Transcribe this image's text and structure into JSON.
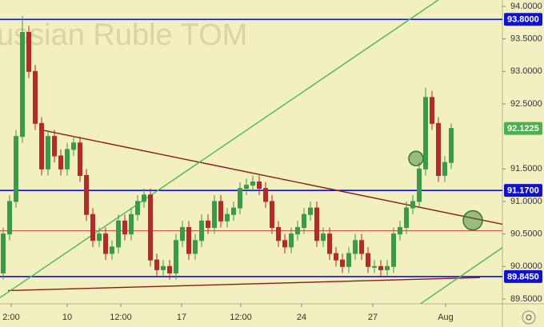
{
  "chart_data": {
    "type": "candlestick",
    "watermark": "ussian Ruble TOM",
    "x": [
      0,
      2,
      4,
      6,
      8,
      10,
      12,
      14,
      16,
      18,
      20,
      22,
      24,
      26,
      28,
      30,
      32,
      34,
      36,
      38,
      40,
      42,
      44,
      46,
      48,
      50,
      52,
      54,
      56,
      58,
      60,
      62,
      64,
      66,
      68,
      70,
      72,
      74,
      76,
      78,
      80,
      82,
      84,
      86,
      88,
      90,
      92,
      94,
      96,
      98,
      100,
      102,
      104,
      106,
      108,
      110,
      112,
      114,
      116,
      118,
      120,
      122,
      124,
      126,
      128,
      130,
      132,
      134,
      136,
      138,
      140,
      142
    ],
    "open": [
      89.8,
      89.9,
      90.5,
      91.0,
      92.0,
      93.6,
      93.0,
      92.2,
      91.5,
      92.0,
      91.7,
      91.5,
      91.8,
      91.9,
      91.4,
      90.8,
      90.4,
      90.5,
      90.2,
      90.3,
      90.7,
      90.5,
      90.8,
      91.0,
      91.1,
      90.1,
      89.95,
      90.0,
      89.9,
      90.4,
      90.6,
      90.2,
      90.4,
      90.7,
      90.6,
      91.0,
      90.7,
      90.8,
      90.9,
      91.2,
      91.25,
      91.3,
      91.2,
      91.0,
      90.6,
      90.4,
      90.3,
      90.5,
      90.6,
      90.8,
      90.9,
      90.4,
      90.5,
      90.2,
      90.1,
      90.0,
      90.2,
      90.4,
      90.2,
      90.0,
      90.0,
      89.95,
      90.0,
      90.5,
      90.6,
      90.9,
      91.0,
      91.5,
      92.6,
      92.2,
      91.4,
      91.6
    ],
    "high": [
      90.0,
      90.6,
      91.1,
      92.1,
      93.85,
      93.7,
      93.1,
      92.3,
      92.1,
      92.1,
      91.8,
      91.9,
      92.0,
      92.0,
      91.5,
      90.9,
      90.6,
      90.6,
      90.4,
      90.8,
      90.8,
      90.9,
      91.1,
      91.2,
      91.2,
      90.2,
      90.1,
      90.1,
      90.5,
      90.7,
      90.7,
      90.5,
      90.8,
      90.8,
      91.1,
      91.1,
      90.9,
      91.0,
      91.3,
      91.35,
      91.4,
      91.4,
      91.3,
      91.1,
      90.7,
      90.5,
      90.6,
      90.7,
      90.9,
      91.0,
      91.0,
      90.6,
      90.6,
      90.3,
      90.2,
      90.3,
      90.5,
      90.5,
      90.3,
      90.1,
      90.1,
      90.1,
      90.6,
      90.7,
      91.0,
      91.1,
      91.6,
      92.75,
      92.7,
      92.3,
      91.7,
      92.2
    ],
    "low": [
      89.7,
      89.8,
      90.4,
      90.9,
      91.9,
      92.9,
      92.1,
      91.4,
      91.4,
      91.6,
      91.4,
      91.4,
      91.7,
      91.3,
      90.7,
      90.3,
      90.3,
      90.1,
      90.1,
      90.2,
      90.4,
      90.4,
      90.7,
      90.9,
      90.0,
      89.85,
      89.85,
      89.8,
      89.8,
      90.3,
      90.1,
      90.1,
      90.3,
      90.5,
      90.5,
      90.6,
      90.6,
      90.7,
      90.8,
      91.1,
      91.15,
      91.1,
      90.9,
      90.5,
      90.3,
      90.2,
      90.2,
      90.4,
      90.5,
      90.7,
      90.3,
      90.3,
      90.1,
      90.0,
      89.9,
      89.9,
      90.1,
      90.1,
      89.9,
      89.9,
      89.85,
      89.85,
      89.9,
      90.4,
      90.5,
      90.8,
      90.9,
      91.4,
      92.1,
      91.3,
      91.3,
      91.5
    ],
    "close": [
      89.9,
      90.5,
      91.0,
      92.0,
      93.6,
      93.0,
      92.2,
      91.5,
      92.0,
      91.7,
      91.5,
      91.8,
      91.9,
      91.4,
      90.8,
      90.4,
      90.5,
      90.2,
      90.3,
      90.7,
      90.5,
      90.8,
      91.0,
      91.1,
      90.1,
      89.95,
      90.0,
      89.9,
      90.4,
      90.6,
      90.2,
      90.4,
      90.7,
      90.6,
      91.0,
      90.7,
      90.8,
      90.9,
      91.2,
      91.25,
      91.3,
      91.2,
      91.0,
      90.6,
      90.4,
      90.3,
      90.5,
      90.6,
      90.8,
      90.9,
      90.4,
      90.5,
      90.2,
      90.1,
      90.0,
      90.2,
      90.4,
      90.2,
      90.0,
      90.0,
      89.95,
      90.0,
      90.5,
      90.6,
      90.9,
      91.0,
      91.5,
      92.6,
      92.2,
      91.4,
      91.6,
      92.1225
    ],
    "up_color": "#3a9a4a",
    "down_color": "#b22a2a",
    "last_label": "92.1225",
    "last_color": "#4caf50",
    "xlim": [
      1,
      158
    ],
    "ylim": [
      89.426,
      94.098
    ],
    "xticks": [
      {
        "value": 4.5,
        "label": "2:00"
      },
      {
        "value": 22,
        "label": "10"
      },
      {
        "value": 38.75,
        "label": "12:00"
      },
      {
        "value": 57.75,
        "label": "17"
      },
      {
        "value": 76.25,
        "label": "12:00"
      },
      {
        "value": 95.25,
        "label": "24"
      },
      {
        "value": 117.5,
        "label": "27"
      },
      {
        "value": 140.25,
        "label": "Aug"
      }
    ],
    "yticks": [
      {
        "value": 94,
        "label": "94.0000"
      },
      {
        "value": 93.5,
        "label": "93.5000"
      },
      {
        "value": 93,
        "label": "93.0000"
      },
      {
        "value": 92.5,
        "label": "92.5000"
      },
      {
        "value": 91.5,
        "label": "91.5000"
      },
      {
        "value": 91,
        "label": "91.0000"
      },
      {
        "value": 90.5,
        "label": "90.5000"
      },
      {
        "value": 90,
        "label": "90.0000"
      },
      {
        "value": 89.5,
        "label": "89.5000"
      }
    ],
    "hlines": [
      {
        "value": 93.8,
        "label": "93.8000",
        "color": "#1010d0",
        "labeled": true
      },
      {
        "value": 91.17,
        "label": "91.1700",
        "color": "#1010d0",
        "labeled": true
      },
      {
        "value": 89.845,
        "label": "89.8450",
        "color": "#1010d0",
        "labeled": true
      },
      {
        "value": 90.55,
        "color": "#d04040",
        "labeled": false
      }
    ],
    "trendlines": [
      {
        "x": [
          14,
          158
        ],
        "y": [
          92.1,
          90.65
        ],
        "color": "#8b1a1a"
      },
      {
        "x": [
          3.5,
          151
        ],
        "y": [
          89.63,
          89.83
        ],
        "color": "#8b1a1a"
      },
      {
        "x": [
          1,
          138
        ],
        "y": [
          89.52,
          94.1
        ],
        "color": "#4cbb4c"
      },
      {
        "x": [
          131,
          158
        ],
        "y": [
          89.38,
          90.29
        ],
        "color": "#4cbb4c"
      }
    ],
    "markers": [
      {
        "x": 131,
        "y": 91.66
      },
      {
        "x": 148.75,
        "y": 90.71
      }
    ],
    "marker_color": "#2f7a2f"
  }
}
